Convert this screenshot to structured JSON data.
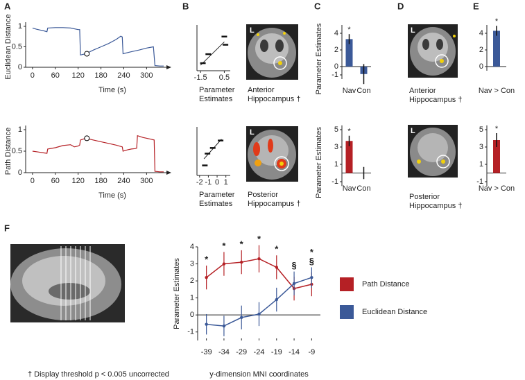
{
  "panel_labels": [
    "A",
    "B",
    "C",
    "D",
    "E",
    "F"
  ],
  "brain_label": "L",
  "panel_d": {
    "top_caption": [
      "Anterior",
      "Hippocampus †"
    ],
    "bottom_caption": [
      "Posterior",
      "Hippocampus †"
    ]
  },
  "footnote": "† Display threshold p < 0.005 uncorrected",
  "chart_data": [
    {
      "type": "line",
      "y_label": "Euclidean Distance",
      "x_label": "Time (s)",
      "color": "#3b5998",
      "x": [
        0,
        10,
        20,
        30,
        38,
        40,
        60,
        80,
        100,
        120,
        124,
        126,
        140,
        160,
        180,
        200,
        220,
        232,
        236,
        238,
        260,
        280,
        300,
        318,
        322,
        335,
        345
      ],
      "values": [
        0.96,
        0.93,
        0.91,
        0.89,
        0.87,
        0.96,
        0.97,
        0.97,
        0.96,
        0.92,
        0.92,
        0.3,
        0.33,
        0.42,
        0.5,
        0.58,
        0.68,
        0.76,
        0.74,
        0.33,
        0.38,
        0.42,
        0.47,
        0.5,
        0.04,
        0.03,
        0.03
      ],
      "highlight": {
        "x": 143,
        "y": 0.33
      },
      "xlim": [
        -18,
        365
      ],
      "ylim": [
        0,
        1
      ],
      "xticks": [
        0,
        60,
        120,
        180,
        240,
        300
      ],
      "yticks": [
        0,
        0.5,
        1
      ]
    },
    {
      "type": "line",
      "y_label": "Path Distance",
      "x_label": "Time (s)",
      "color": "#b52025",
      "x": [
        0,
        15,
        30,
        38,
        40,
        60,
        80,
        100,
        110,
        120,
        124,
        126,
        140,
        160,
        180,
        200,
        220,
        236,
        238,
        250,
        260,
        270,
        274,
        276,
        290,
        310,
        320,
        322,
        335,
        345
      ],
      "values": [
        0.5,
        0.48,
        0.46,
        0.45,
        0.55,
        0.58,
        0.63,
        0.65,
        0.6,
        0.62,
        0.64,
        0.76,
        0.8,
        0.76,
        0.72,
        0.68,
        0.64,
        0.6,
        0.5,
        0.53,
        0.55,
        0.56,
        0.57,
        0.86,
        0.82,
        0.78,
        0.76,
        0.03,
        0.02,
        0.02
      ],
      "highlight": {
        "x": 143,
        "y": 0.8
      },
      "xlim": [
        -18,
        365
      ],
      "ylim": [
        0,
        1
      ],
      "xticks": [
        0,
        60,
        120,
        180,
        240,
        300
      ],
      "yticks": [
        0,
        0.5,
        1
      ]
    },
    {
      "type": "scatter",
      "x_label": [
        "Parameter",
        "Estimates"
      ],
      "caption": [
        "Anterior",
        "Hippocampus †"
      ],
      "color": "#111111",
      "x": [
        -1.3,
        -0.85,
        0.5,
        0.6
      ],
      "values": [
        0.1,
        0.32,
        0.75,
        0.55
      ],
      "fit_line": {
        "x": [
          -1.5,
          0.5
        ],
        "y": [
          0.05,
          0.62
        ]
      },
      "xlim": [
        -1.8,
        1.0
      ],
      "ylim": [
        0,
        1
      ],
      "xticks": [
        -1.5,
        0.5
      ]
    },
    {
      "type": "scatter",
      "x_label": [
        "Parameter",
        "Estimates"
      ],
      "caption": [
        "Posterior",
        "Hippocampus †"
      ],
      "color": "#111111",
      "x": [
        -1.4,
        -1.1,
        -0.5,
        0.4
      ],
      "values": [
        0.15,
        0.42,
        0.55,
        0.72
      ],
      "fit_line": {
        "x": [
          -1.5,
          0.5
        ],
        "y": [
          0.3,
          0.75
        ]
      },
      "xlim": [
        -2.3,
        1.5
      ],
      "ylim": [
        0,
        1
      ],
      "xticks": [
        -2,
        -1,
        0,
        1
      ]
    },
    {
      "type": "bar",
      "y_label": "Parameter Estimates",
      "categories": [
        "Nav",
        "Con"
      ],
      "values": [
        3.3,
        -0.9
      ],
      "errors": [
        0.6,
        1.2
      ],
      "significance": [
        "*",
        null
      ],
      "color": "#3b5998",
      "ylim": [
        -1.5,
        5
      ],
      "yticks": [
        -1,
        0,
        2,
        4
      ]
    },
    {
      "type": "bar",
      "y_label": "Parameter Estimates",
      "categories": [
        "Nav",
        "Con"
      ],
      "values": [
        3.7,
        0.0
      ],
      "errors": [
        0.6,
        0.7
      ],
      "significance": [
        "*",
        null
      ],
      "color": "#b52025",
      "ylim": [
        -1.5,
        5.5
      ],
      "yticks": [
        -1,
        1,
        3,
        5
      ]
    },
    {
      "type": "bar",
      "categories": [
        "Nav > Con"
      ],
      "values": [
        4.3
      ],
      "errors": [
        0.6
      ],
      "significance": [
        "*"
      ],
      "color": "#3b5998",
      "ylim": [
        -0.5,
        5
      ],
      "yticks": [
        0,
        2,
        4
      ]
    },
    {
      "type": "bar",
      "categories": [
        "Nav > Con"
      ],
      "values": [
        3.8
      ],
      "errors": [
        0.8
      ],
      "significance": [
        "*"
      ],
      "color": "#b52025",
      "ylim": [
        -1.5,
        5.5
      ],
      "yticks": [
        -1,
        1,
        3,
        5
      ]
    },
    {
      "type": "line",
      "y_label": "Parameter Estimates",
      "x_label": "y-dimension MNI coordinates",
      "categories": [
        -39,
        -34,
        -29,
        -24,
        -19,
        -14,
        -9
      ],
      "series": [
        {
          "name": "Path Distance",
          "color": "#b52025",
          "values": [
            2.2,
            3.0,
            3.1,
            3.3,
            2.8,
            1.55,
            1.8
          ],
          "errors": [
            0.7,
            0.7,
            0.7,
            0.8,
            0.7,
            0.7,
            0.7
          ]
        },
        {
          "name": "Euclidean Distance",
          "color": "#3b5998",
          "values": [
            -0.55,
            -0.65,
            -0.15,
            0.05,
            0.9,
            1.85,
            2.2
          ],
          "errors": [
            0.6,
            0.6,
            0.7,
            0.7,
            0.7,
            0.7,
            0.6
          ]
        }
      ],
      "significance": [
        [
          "*"
        ],
        [
          "*"
        ],
        [
          "*"
        ],
        [
          "*"
        ],
        [
          "*"
        ],
        [
          "§"
        ],
        [
          "*",
          "§"
        ]
      ],
      "ylim": [
        -1.5,
        4
      ],
      "yticks": [
        -1,
        0,
        1,
        2,
        3,
        4
      ],
      "legend": "right"
    }
  ]
}
